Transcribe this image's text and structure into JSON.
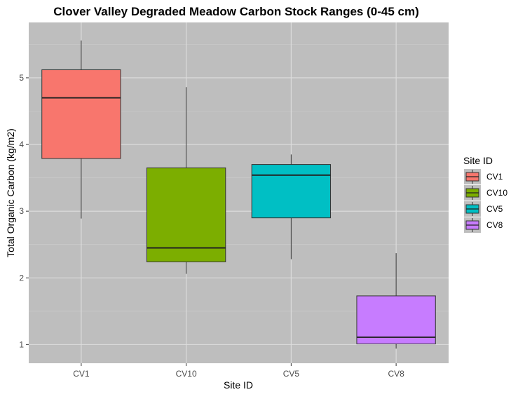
{
  "chart_data": {
    "type": "boxplot",
    "title": "Clover Valley Degraded Meadow Carbon Stock Ranges (0-45 cm)",
    "xlabel": "Site ID",
    "ylabel": "Total Organic Carbon (kg/m2)",
    "ylim": [
      0.72,
      5.83
    ],
    "yticks": [
      1,
      2,
      3,
      4,
      5
    ],
    "grid": true,
    "legend": {
      "title": "Site ID",
      "position": "right"
    },
    "categories": [
      "CV1",
      "CV10",
      "CV5",
      "CV8"
    ],
    "colors": [
      "#f8766d",
      "#7cae00",
      "#00bfc4",
      "#c77cff"
    ],
    "boxes": [
      {
        "name": "CV1",
        "min": 2.89,
        "q1": 3.79,
        "median": 4.7,
        "q3": 5.12,
        "max": 5.56
      },
      {
        "name": "CV10",
        "min": 2.06,
        "q1": 2.24,
        "median": 2.45,
        "q3": 3.65,
        "max": 4.86
      },
      {
        "name": "CV5",
        "min": 2.28,
        "q1": 2.9,
        "median": 3.54,
        "q3": 3.7,
        "max": 3.85
      },
      {
        "name": "CV8",
        "min": 0.94,
        "q1": 1.01,
        "median": 1.11,
        "q3": 1.73,
        "max": 2.37
      }
    ]
  }
}
